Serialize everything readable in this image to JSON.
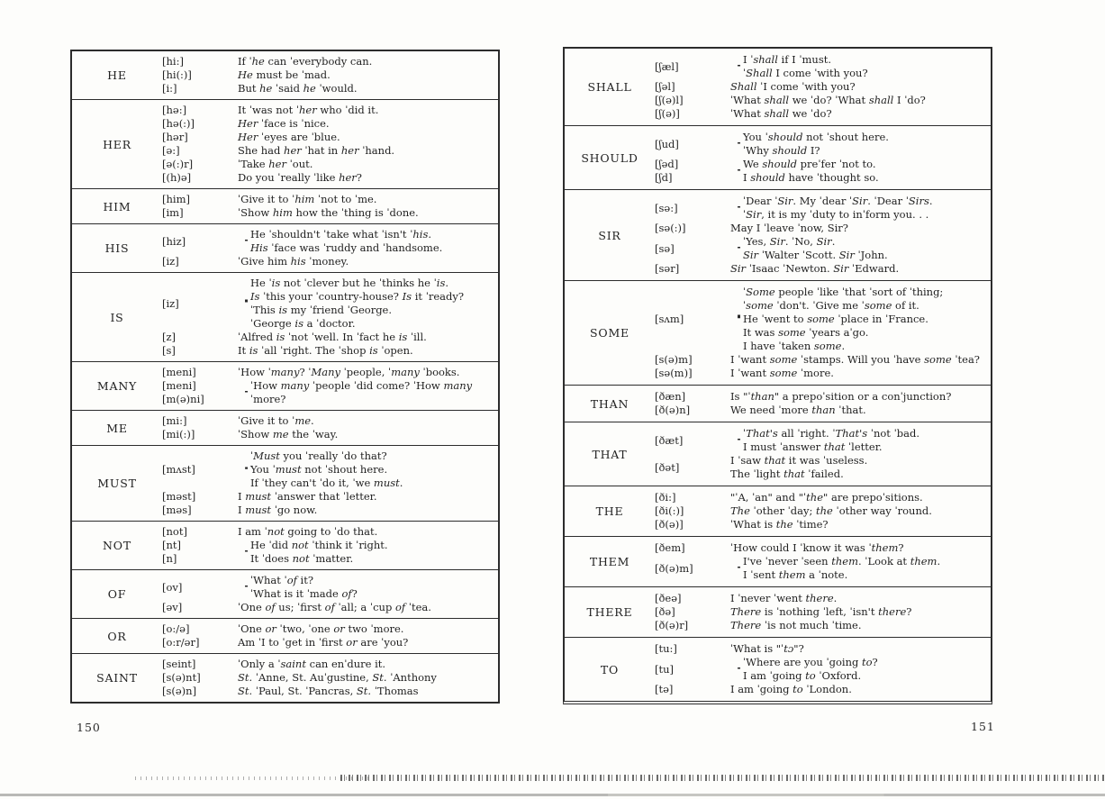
{
  "document": {
    "left_page": {
      "page_number": "150",
      "entries": [
        {
          "word": "HE",
          "blocks": [
            {
              "phons": [
                "[hi:]"
              ],
              "brace": false,
              "lines": [
                "If ˈ*he* can ˈeverybody can."
              ]
            },
            {
              "phons": [
                "[hi(:)]"
              ],
              "brace": false,
              "lines": [
                "*He* must be ˈmad."
              ]
            },
            {
              "phons": [
                "[i:]"
              ],
              "brace": false,
              "lines": [
                "But *he* ˈsaid *he* ˈwould."
              ]
            }
          ]
        },
        {
          "word": "HER",
          "blocks": [
            {
              "phons": [
                "[hə:]"
              ],
              "brace": false,
              "lines": [
                "It ˈwas not ˈ*her* who ˈdid it."
              ]
            },
            {
              "phons": [
                "[hə(:)]"
              ],
              "brace": false,
              "lines": [
                "*Her* ˈface is ˈnice."
              ]
            },
            {
              "phons": [
                "[hər]"
              ],
              "brace": false,
              "lines": [
                "*Her* ˈeyes are ˈblue."
              ]
            },
            {
              "phons": [
                "[ə:]"
              ],
              "brace": false,
              "lines": [
                "She had *her* ˈhat in *her* ˈhand."
              ]
            },
            {
              "phons": [
                "[ə(:)r]"
              ],
              "brace": false,
              "lines": [
                "ˈTake *her* ˈout."
              ]
            },
            {
              "phons": [
                "[(h)ə]"
              ],
              "brace": false,
              "lines": [
                "Do you ˈreally ˈlike *her*?"
              ]
            }
          ]
        },
        {
          "word": "HIM",
          "blocks": [
            {
              "phons": [
                "[him]"
              ],
              "brace": false,
              "lines": [
                "ˈGive it to ˈ*him* ˈnot to ˈme."
              ]
            },
            {
              "phons": [
                "[im]"
              ],
              "brace": false,
              "lines": [
                "ˈShow *him* how the ˈthing is ˈdone."
              ]
            }
          ]
        },
        {
          "word": "HIS",
          "blocks": [
            {
              "phons": [
                "[hiz]"
              ],
              "brace": true,
              "lines": [
                "He ˈshouldn't ˈtake what ˈisn't ˈ*his*.",
                "*His* ˈface was ˈruddy and ˈhandsome."
              ]
            },
            {
              "phons": [
                "[iz]"
              ],
              "brace": false,
              "lines": [
                "ˈGive him *his* ˈmoney."
              ]
            }
          ]
        },
        {
          "word": "IS",
          "blocks": [
            {
              "phons": [
                "[iz]"
              ],
              "brace": true,
              "lines": [
                "He ˈ*is* not ˈclever but he ˈthinks he ˈ*is*.",
                "*Is* ˈthis your ˈcountry-house? *Is* it ˈready?",
                "ˈThis *is* my ˈfriend ˈGeorge.",
                "ˈGeorge *is* a ˈdoctor."
              ]
            },
            {
              "phons": [
                "[z]"
              ],
              "brace": false,
              "lines": [
                "ˈAlfred *is* ˈnot ˈwell. In ˈfact he *is* ˈill."
              ]
            },
            {
              "phons": [
                "[s]"
              ],
              "brace": false,
              "lines": [
                "It *is* ˈall ˈright. The ˈshop *is* ˈopen."
              ]
            }
          ]
        },
        {
          "word": "MANY",
          "blocks": [
            {
              "phons": [
                "[meni]"
              ],
              "brace": false,
              "lines": [
                "ˈHow ˈ*many*? ˈ*Many* ˈpeople, ˈ*many* ˈbooks."
              ]
            },
            {
              "phons": [
                "[meni]",
                "[m(ə)ni]"
              ],
              "brace": true,
              "lines": [
                "ˈHow *many* ˈpeople ˈdid come? ˈHow *many*",
                "ˈmore?"
              ]
            }
          ]
        },
        {
          "word": "ME",
          "blocks": [
            {
              "phons": [
                "[mi:]"
              ],
              "brace": false,
              "lines": [
                "ˈGive it to ˈ*me*."
              ]
            },
            {
              "phons": [
                "[mi(:)]"
              ],
              "brace": false,
              "lines": [
                "ˈShow *me* the ˈway."
              ]
            }
          ]
        },
        {
          "word": "MUST",
          "blocks": [
            {
              "phons": [
                "[mʌst]"
              ],
              "brace": true,
              "lines": [
                "ˈ*Must* you ˈreally ˈdo that?",
                "You ˈ*must* not ˈshout here.",
                "If ˈthey can't ˈdo it, ˈwe *must*."
              ]
            },
            {
              "phons": [
                "[məst]"
              ],
              "brace": false,
              "lines": [
                "I *must* ˈanswer that ˈletter."
              ]
            },
            {
              "phons": [
                "[məs]"
              ],
              "brace": false,
              "lines": [
                "I *must* ˈgo now."
              ]
            }
          ]
        },
        {
          "word": "NOT",
          "blocks": [
            {
              "phons": [
                "[not]"
              ],
              "brace": false,
              "lines": [
                "I am ˈ*not* going to ˈdo that."
              ]
            },
            {
              "phons": [
                "[nt]",
                "[n]"
              ],
              "brace": true,
              "lines": [
                "He ˈdid *not* ˈthink it ˈright.",
                "It ˈdoes *not* ˈmatter."
              ]
            }
          ]
        },
        {
          "word": "OF",
          "blocks": [
            {
              "phons": [
                "[ov]"
              ],
              "brace": true,
              "lines": [
                "ˈWhat ˈ*of* it?",
                "ˈWhat is it ˈmade *of*?"
              ]
            },
            {
              "phons": [
                "[əv]"
              ],
              "brace": false,
              "lines": [
                "ˈOne *of* us; ˈfirst *of* ˈall; a ˈcup *of* ˈtea."
              ]
            }
          ]
        },
        {
          "word": "OR",
          "blocks": [
            {
              "phons": [
                "[o:/ə]"
              ],
              "brace": false,
              "lines": [
                "ˈOne *or* ˈtwo, ˈone *or* two ˈmore."
              ]
            },
            {
              "phons": [
                "[o:r/ər]"
              ],
              "brace": false,
              "lines": [
                "Am ˈI to ˈget in ˈfirst *or* are ˈyou?"
              ]
            }
          ]
        },
        {
          "word": "SAINT",
          "blocks": [
            {
              "phons": [
                "[seint]"
              ],
              "brace": false,
              "lines": [
                "ˈOnly a ˈ*saint* can enˈdure it."
              ]
            },
            {
              "phons": [
                "[s(ə)nt]"
              ],
              "brace": false,
              "lines": [
                "*St.* ˈAnne, St. Auˈgustine, *St.* ˈAnthony"
              ]
            },
            {
              "phons": [
                "[s(ə)n]"
              ],
              "brace": false,
              "lines": [
                "*St.* ˈPaul, St. ˈPancras, *St.* ˈThomas"
              ]
            }
          ]
        }
      ]
    },
    "right_page": {
      "page_number": "151",
      "entries": [
        {
          "word": "SHALL",
          "blocks": [
            {
              "phons": [
                "[ʃæl]"
              ],
              "brace": true,
              "lines": [
                "I ˈ*shall* if I ˈmust.",
                "ˈ*Shall* I come ˈwith you?"
              ]
            },
            {
              "phons": [
                "[ʃəl]"
              ],
              "brace": false,
              "lines": [
                "*Shall* ˈI come ˈwith you?"
              ]
            },
            {
              "phons": [
                "[ʃ(ə)l]"
              ],
              "brace": false,
              "lines": [
                "ˈWhat *shall* we ˈdo? ˈWhat *shall* I ˈdo?"
              ]
            },
            {
              "phons": [
                "[ʃ(ə)]"
              ],
              "brace": false,
              "lines": [
                "ˈWhat *shall* we ˈdo?"
              ]
            }
          ]
        },
        {
          "word": "SHOULD",
          "blocks": [
            {
              "phons": [
                "[ʃud]"
              ],
              "brace": true,
              "lines": [
                "You ˈ*should* not ˈshout here.",
                "ˈWhy *should* I?"
              ]
            },
            {
              "phons": [
                "[ʃəd]",
                "[ʃd]"
              ],
              "brace": true,
              "lines": [
                "We *should* preˈfer ˈnot to.",
                "I *should* have ˈthought so."
              ]
            }
          ]
        },
        {
          "word": "SIR",
          "blocks": [
            {
              "phons": [
                "[sə:]"
              ],
              "brace": true,
              "lines": [
                "ˈDear ˈ*Sir*. My ˈdear ˈ*Sir*. ˈDear ˈ*Sirs*.",
                "ˈ*Sir*, it is my ˈduty to inˈform you. . ."
              ]
            },
            {
              "phons": [
                "[sə(:)]"
              ],
              "brace": false,
              "lines": [
                "May I ˈleave ˈnow, Sir?"
              ]
            },
            {
              "phons": [
                "[sə]"
              ],
              "brace": true,
              "lines": [
                "ˈYes, *Sir*. ˈNo, *Sir*.",
                "*Sir* ˈWalter ˈScott. *Sir* ˈJohn."
              ]
            },
            {
              "phons": [
                "[sər]"
              ],
              "brace": false,
              "lines": [
                "*Sir* ˈIsaac ˈNewton. *Sir* ˈEdward."
              ]
            }
          ]
        },
        {
          "word": "SOME",
          "blocks": [
            {
              "phons": [
                "[sʌm]"
              ],
              "brace": true,
              "lines": [
                "ˈ*Some* people ˈlike ˈthat ˈsort of ˈthing;",
                "ˈ*some* ˈdon't. ˈGive me ˈ*some* of it.",
                "He ˈwent to *some* ˈplace in ˈFrance.",
                "It was *some* ˈyears aˈgo.",
                "I have ˈtaken *some*."
              ]
            },
            {
              "phons": [
                "[s(ə)m]"
              ],
              "brace": false,
              "lines": [
                "I ˈwant *some* ˈstamps. Will you ˈhave *some* ˈtea?"
              ]
            },
            {
              "phons": [
                "[sə(m)]"
              ],
              "brace": false,
              "lines": [
                "I ˈwant *some* ˈmore."
              ]
            }
          ]
        },
        {
          "word": "THAN",
          "blocks": [
            {
              "phons": [
                "[ðæn]"
              ],
              "brace": false,
              "lines": [
                "Is \"ˈ*than*\" a prepoˈsition or a conˈjunction?"
              ]
            },
            {
              "phons": [
                "[ð(ə)n]"
              ],
              "brace": false,
              "lines": [
                "We need ˈmore *than* ˈthat."
              ]
            }
          ]
        },
        {
          "word": "THAT",
          "blocks": [
            {
              "phons": [
                "[ðæt]"
              ],
              "brace": true,
              "lines": [
                "ˈ*That's* all ˈright. ˈ*That's* ˈnot ˈbad.",
                "I must ˈanswer *that* ˈletter."
              ]
            },
            {
              "phons": [
                "[ðət]"
              ],
              "brace": false,
              "lines": [
                "I  ˈsaw *that* it was ˈuseless.",
                "The ˈlight *that* ˈfailed."
              ]
            }
          ]
        },
        {
          "word": "THE",
          "blocks": [
            {
              "phons": [
                "[ði:]"
              ],
              "brace": false,
              "lines": [
                "\"ˈA, ˈan\" and \"ˈ*the*\" are prepoˈsitions."
              ]
            },
            {
              "phons": [
                "[ði(:)]"
              ],
              "brace": false,
              "lines": [
                "*The* ˈother ˈday; *the* ˈother way ˈround."
              ]
            },
            {
              "phons": [
                "[ð(ə)]"
              ],
              "brace": false,
              "lines": [
                "ˈWhat is *the* ˈtime?"
              ]
            }
          ]
        },
        {
          "word": "THEM",
          "blocks": [
            {
              "phons": [
                "[ðem]"
              ],
              "brace": false,
              "lines": [
                "ˈHow could I ˈknow it was ˈ*them*?"
              ]
            },
            {
              "phons": [
                "[ð(ə)m]"
              ],
              "brace": true,
              "lines": [
                "I've ˈnever ˈseen *them*. ˈLook at *them*.",
                "I ˈsent *them* a ˈnote."
              ]
            }
          ]
        },
        {
          "word": "THERE",
          "blocks": [
            {
              "phons": [
                "[ðeə]"
              ],
              "brace": false,
              "lines": [
                "I ˈnever ˈwent *there*."
              ]
            },
            {
              "phons": [
                "[ðə]"
              ],
              "brace": false,
              "lines": [
                "*There* is ˈnothing ˈleft, ˈisn't *there*?"
              ]
            },
            {
              "phons": [
                "[ð(ə)r]"
              ],
              "brace": false,
              "lines": [
                "*There* ˈis not much ˈtime."
              ]
            }
          ]
        },
        {
          "word": "TO",
          "blocks": [
            {
              "phons": [
                "[tu:]"
              ],
              "brace": false,
              "lines": [
                "ˈWhat is \"ˈ*tɔ*\"?"
              ]
            },
            {
              "phons": [
                "[tu]"
              ],
              "brace": true,
              "lines": [
                "ˈWhere are you ˈgoing *to*?",
                "I am ˈgoing *to* ˈOxford."
              ]
            },
            {
              "phons": [
                "[tə]"
              ],
              "brace": false,
              "lines": [
                "I am ˈgoing *to* ˈLondon."
              ]
            }
          ]
        }
      ]
    }
  }
}
